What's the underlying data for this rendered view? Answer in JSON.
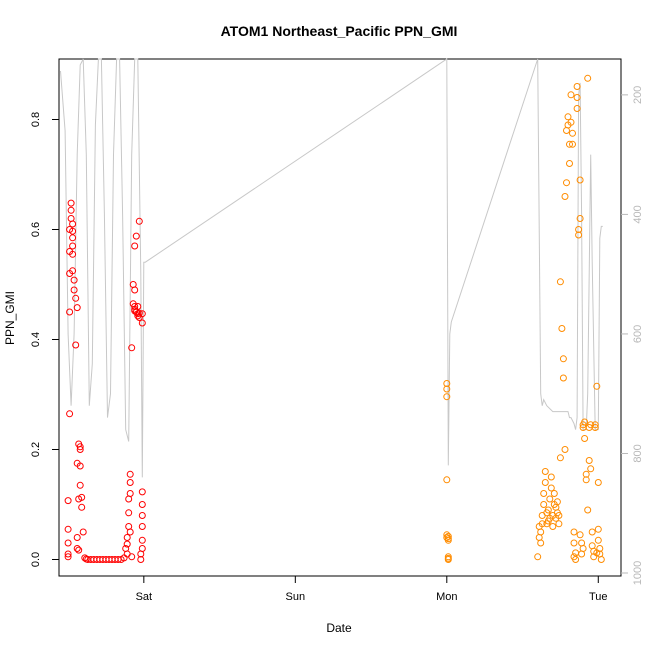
{
  "chart_data": {
    "type": "scatter",
    "title": "ATOM1 Northeast_Pacific PPN_GMI",
    "xlabel": "Date",
    "ylabel": "PPN_GMI",
    "x_ticks": [
      "Sat",
      "Sun",
      "Mon",
      "Tue"
    ],
    "x_tick_positions_days": [
      1,
      2,
      3,
      4
    ],
    "xlim_days": [
      0.44,
      4.15
    ],
    "ylim": [
      -0.03,
      0.91
    ],
    "y_ticks": [
      0.0,
      0.2,
      0.4,
      0.6,
      0.8
    ],
    "y_tick_labels": [
      "0.0",
      "0.2",
      "0.4",
      "0.6",
      "0.8"
    ],
    "y2_label": "",
    "y2_ticks": [
      200,
      400,
      600,
      800,
      1000
    ],
    "y2_tick_labels": [
      "200",
      "400",
      "600",
      "800",
      "1000"
    ],
    "y2lim": [
      1005,
      140
    ],
    "grid": false,
    "legend": "none",
    "colors": {
      "series_red": "#ff0000",
      "series_orange": "#ff8c00",
      "pressure_line": "#c8c8c8",
      "right_axis": "#b8b8b8"
    },
    "series": [
      {
        "color": "#ff0000",
        "x": [
          0.5,
          0.5,
          0.5,
          0.5,
          0.5,
          0.51,
          0.51,
          0.51,
          0.51,
          0.51,
          0.52,
          0.52,
          0.52,
          0.53,
          0.53,
          0.53,
          0.53,
          0.53,
          0.53,
          0.54,
          0.54,
          0.55,
          0.55,
          0.56,
          0.56,
          0.56,
          0.56,
          0.57,
          0.57,
          0.57,
          0.58,
          0.58,
          0.58,
          0.58,
          0.59,
          0.59,
          0.6,
          0.61,
          0.62,
          0.63,
          0.65,
          0.67,
          0.69,
          0.71,
          0.73,
          0.75,
          0.77,
          0.79,
          0.81,
          0.83,
          0.85,
          0.87,
          0.88,
          0.89,
          0.89,
          0.89,
          0.9,
          0.9,
          0.9,
          0.91,
          0.91,
          0.91,
          0.91,
          0.92,
          0.92,
          0.93,
          0.93,
          0.94,
          0.94,
          0.94,
          0.94,
          0.94,
          0.95,
          0.95,
          0.96,
          0.96,
          0.96,
          0.97,
          0.97,
          0.97,
          0.98,
          0.98,
          0.99,
          0.99,
          0.99,
          0.99,
          0.99,
          0.99,
          0.99,
          0.99
        ],
        "y": [
          0.01,
          0.005,
          0.03,
          0.055,
          0.107,
          0.265,
          0.45,
          0.52,
          0.56,
          0.6,
          0.635,
          0.648,
          0.62,
          0.61,
          0.597,
          0.585,
          0.57,
          0.555,
          0.525,
          0.508,
          0.49,
          0.475,
          0.39,
          0.458,
          0.175,
          0.04,
          0.02,
          0.017,
          0.11,
          0.21,
          0.17,
          0.2,
          0.205,
          0.135,
          0.113,
          0.095,
          0.05,
          0.003,
          0.001,
          0.0,
          0.0,
          0.0,
          0.0,
          0.0,
          0.0,
          0.0,
          0.0,
          0.0,
          0.0,
          0.0,
          0.0,
          0.003,
          0.02,
          0.028,
          0.01,
          0.04,
          0.06,
          0.085,
          0.11,
          0.12,
          0.14,
          0.155,
          0.05,
          0.005,
          0.385,
          0.465,
          0.5,
          0.49,
          0.46,
          0.455,
          0.452,
          0.57,
          0.588,
          0.45,
          0.447,
          0.443,
          0.46,
          0.448,
          0.615,
          0.44,
          0.0,
          0.01,
          0.035,
          0.02,
          0.06,
          0.08,
          0.1,
          0.123,
          0.43,
          0.447
        ]
      },
      {
        "color": "#ff8c00",
        "x": [
          3.0,
          3.0,
          3.0,
          3.0,
          3.0,
          3.0,
          3.01,
          3.01,
          3.01,
          3.01,
          3.01,
          3.01,
          3.6,
          3.61,
          3.61,
          3.62,
          3.62,
          3.63,
          3.63,
          3.64,
          3.64,
          3.65,
          3.65,
          3.66,
          3.66,
          3.67,
          3.67,
          3.68,
          3.68,
          3.69,
          3.69,
          3.7,
          3.7,
          3.71,
          3.71,
          3.72,
          3.72,
          3.73,
          3.73,
          3.74,
          3.74,
          3.75,
          3.75,
          3.76,
          3.77,
          3.77,
          3.78,
          3.78,
          3.79,
          3.79,
          3.8,
          3.8,
          3.81,
          3.81,
          3.82,
          3.82,
          3.83,
          3.83,
          3.84,
          3.84,
          3.84,
          3.85,
          3.85,
          3.86,
          3.86,
          3.86,
          3.87,
          3.87,
          3.88,
          3.88,
          3.88,
          3.89,
          3.89,
          3.9,
          3.9,
          3.9,
          3.91,
          3.91,
          3.92,
          3.92,
          3.93,
          3.93,
          3.94,
          3.94,
          3.95,
          3.95,
          3.96,
          3.96,
          3.97,
          3.97,
          3.98,
          3.98,
          3.99,
          3.99,
          4.0,
          4.0,
          4.0,
          4.01,
          4.01,
          4.02
        ],
        "y": [
          0.32,
          0.31,
          0.296,
          0.145,
          0.045,
          0.04,
          0.038,
          0.035,
          0.005,
          0.0,
          0.002,
          0.042,
          0.005,
          0.06,
          0.04,
          0.05,
          0.03,
          0.065,
          0.08,
          0.1,
          0.12,
          0.14,
          0.16,
          0.085,
          0.065,
          0.07,
          0.09,
          0.075,
          0.11,
          0.13,
          0.15,
          0.06,
          0.08,
          0.1,
          0.12,
          0.095,
          0.075,
          0.085,
          0.105,
          0.065,
          0.08,
          0.185,
          0.505,
          0.42,
          0.365,
          0.33,
          0.2,
          0.66,
          0.685,
          0.78,
          0.79,
          0.805,
          0.72,
          0.755,
          0.845,
          0.795,
          0.775,
          0.755,
          0.05,
          0.03,
          0.005,
          0.012,
          0.0,
          0.86,
          0.84,
          0.82,
          0.59,
          0.6,
          0.62,
          0.69,
          0.045,
          0.03,
          0.01,
          0.02,
          0.245,
          0.24,
          0.25,
          0.22,
          0.155,
          0.145,
          0.09,
          0.875,
          0.24,
          0.18,
          0.245,
          0.165,
          0.025,
          0.05,
          0.015,
          0.005,
          0.245,
          0.24,
          0.012,
          0.315,
          0.14,
          0.055,
          0.035,
          0.02,
          0.01,
          0.0
        ]
      }
    ],
    "pressure_line": {
      "x": [
        0.45,
        0.48,
        0.5,
        0.52,
        0.54,
        0.56,
        0.58,
        0.6,
        0.62,
        0.64,
        0.66,
        0.68,
        0.7,
        0.72,
        0.74,
        0.76,
        0.78,
        0.8,
        0.82,
        0.84,
        0.86,
        0.88,
        0.9,
        0.92,
        0.94,
        0.96,
        0.98,
        0.99,
        1.0,
        1.01,
        3.0,
        3.01,
        3.02,
        3.03,
        3.6,
        3.62,
        3.63,
        3.64,
        3.66,
        3.7,
        3.75,
        3.8,
        3.81,
        3.82,
        3.84,
        3.85,
        3.86,
        3.87,
        3.88,
        3.89,
        3.9,
        3.92,
        3.93,
        3.95,
        3.96,
        3.98,
        4.0,
        4.01,
        4.02,
        4.03
      ],
      "y": [
        160,
        260,
        600,
        720,
        600,
        300,
        150,
        140,
        300,
        720,
        650,
        250,
        140,
        140,
        400,
        740,
        700,
        300,
        140,
        140,
        400,
        760,
        780,
        300,
        140,
        140,
        500,
        840,
        480,
        480,
        140,
        820,
        600,
        580,
        140,
        700,
        720,
        710,
        720,
        730,
        730,
        730,
        740,
        740,
        750,
        760,
        740,
        200,
        180,
        400,
        760,
        760,
        700,
        300,
        480,
        760,
        760,
        440,
        420,
        420
      ]
    }
  }
}
